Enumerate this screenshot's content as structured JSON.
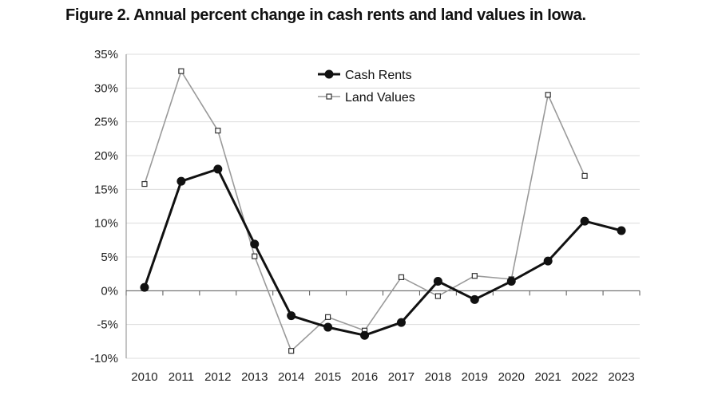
{
  "chart_data": {
    "type": "line",
    "title": "Figure 2. Annual percent change in cash rents and land values in Iowa.",
    "xlabel": "",
    "ylabel": "",
    "categories": [
      "2010",
      "2011",
      "2012",
      "2013",
      "2014",
      "2015",
      "2016",
      "2017",
      "2018",
      "2019",
      "2020",
      "2021",
      "2022",
      "2023"
    ],
    "ylim": [
      -10,
      35
    ],
    "yticks": [
      35,
      30,
      25,
      20,
      15,
      10,
      5,
      0,
      -5,
      -10
    ],
    "ytick_labels": [
      "35%",
      "30%",
      "25%",
      "20%",
      "15%",
      "10%",
      "5%",
      "0%",
      "-5%",
      "-10%"
    ],
    "grid": true,
    "legend_position": "top-center",
    "series": [
      {
        "name": "Cash Rents",
        "color": "#111111",
        "marker": "filled-circle",
        "values": [
          0.5,
          16.2,
          18.0,
          6.9,
          -3.7,
          -5.4,
          -6.6,
          -4.7,
          1.4,
          -1.3,
          1.4,
          4.4,
          10.3,
          8.9
        ]
      },
      {
        "name": "Land Values",
        "color": "#9a9a9a",
        "marker": "hollow-square",
        "values": [
          15.8,
          32.5,
          23.7,
          5.1,
          -8.9,
          -3.9,
          -5.9,
          2.0,
          -0.8,
          2.2,
          1.7,
          29.0,
          17.0,
          null
        ]
      }
    ]
  }
}
